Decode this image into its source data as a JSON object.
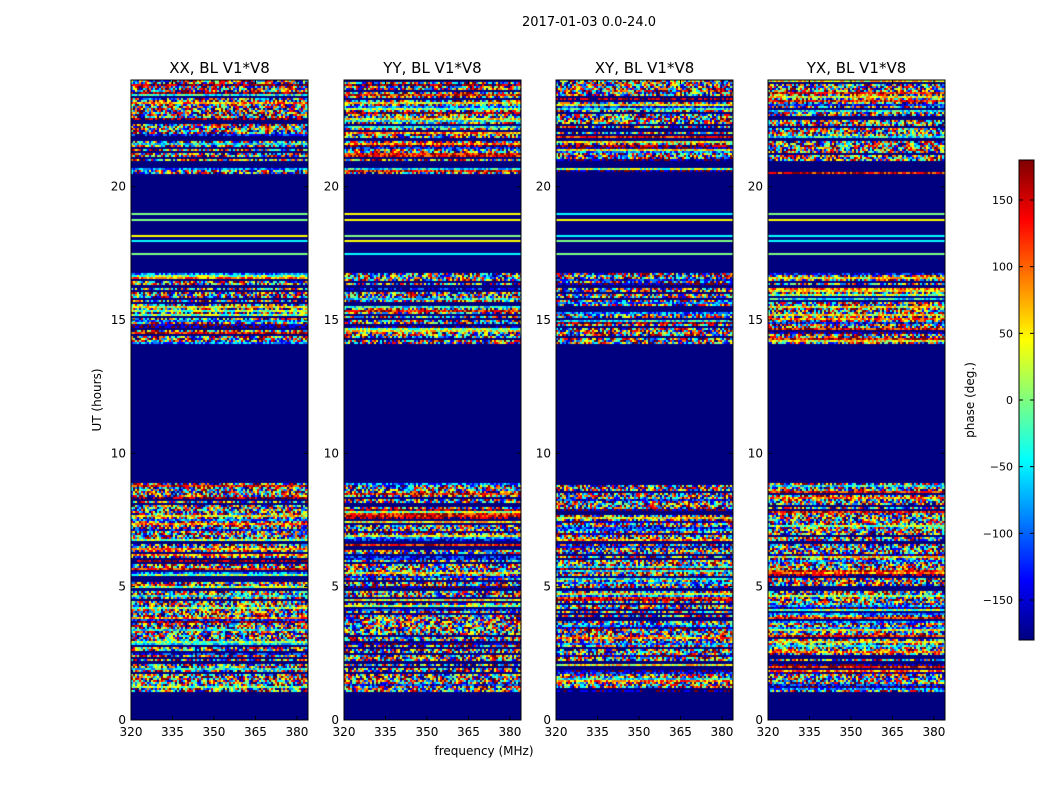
{
  "chart_data": {
    "type": "heatmap",
    "suptitle": "2017-01-03 0.0-24.0",
    "xlabel": "frequency (MHz)",
    "ylabel": "UT (hours)",
    "xlim": [
      320,
      384
    ],
    "ylim": [
      0,
      24
    ],
    "x_ticks": [
      320,
      335,
      350,
      365,
      380
    ],
    "y_ticks": [
      0,
      5,
      10,
      15,
      20
    ],
    "colorbar": {
      "label": "phase (deg.)",
      "range": [
        -180,
        180
      ],
      "ticks": [
        -150,
        -100,
        -50,
        0,
        50,
        100,
        150
      ],
      "colormap": "jet",
      "colormap_stops": [
        "#00007f",
        "#0000ff",
        "#007fff",
        "#00ffff",
        "#7fff7f",
        "#ffff00",
        "#ff7f00",
        "#ff0000",
        "#7f0000"
      ]
    },
    "fill_value_deg": -180,
    "panels": [
      {
        "title": "XX, BL V1*V8",
        "seed": 11
      },
      {
        "title": "YY, BL V1*V8",
        "seed": 23
      },
      {
        "title": "XY, BL V1*V8",
        "seed": 37
      },
      {
        "title": "YX, BL V1*V8",
        "seed": 53
      }
    ],
    "data_bands_ut_hours": [
      [
        1.1,
        2.1
      ],
      [
        2.2,
        4.85
      ],
      [
        4.95,
        6.6
      ],
      [
        6.7,
        8.9
      ],
      [
        14.15,
        16.2
      ],
      [
        16.35,
        16.75
      ],
      [
        20.5,
        20.7
      ],
      [
        21.0,
        21.7
      ],
      [
        21.85,
        24.0
      ]
    ],
    "isolated_lines_ut_hours": [
      17.5,
      18.0,
      18.2,
      18.8,
      19.0
    ]
  }
}
